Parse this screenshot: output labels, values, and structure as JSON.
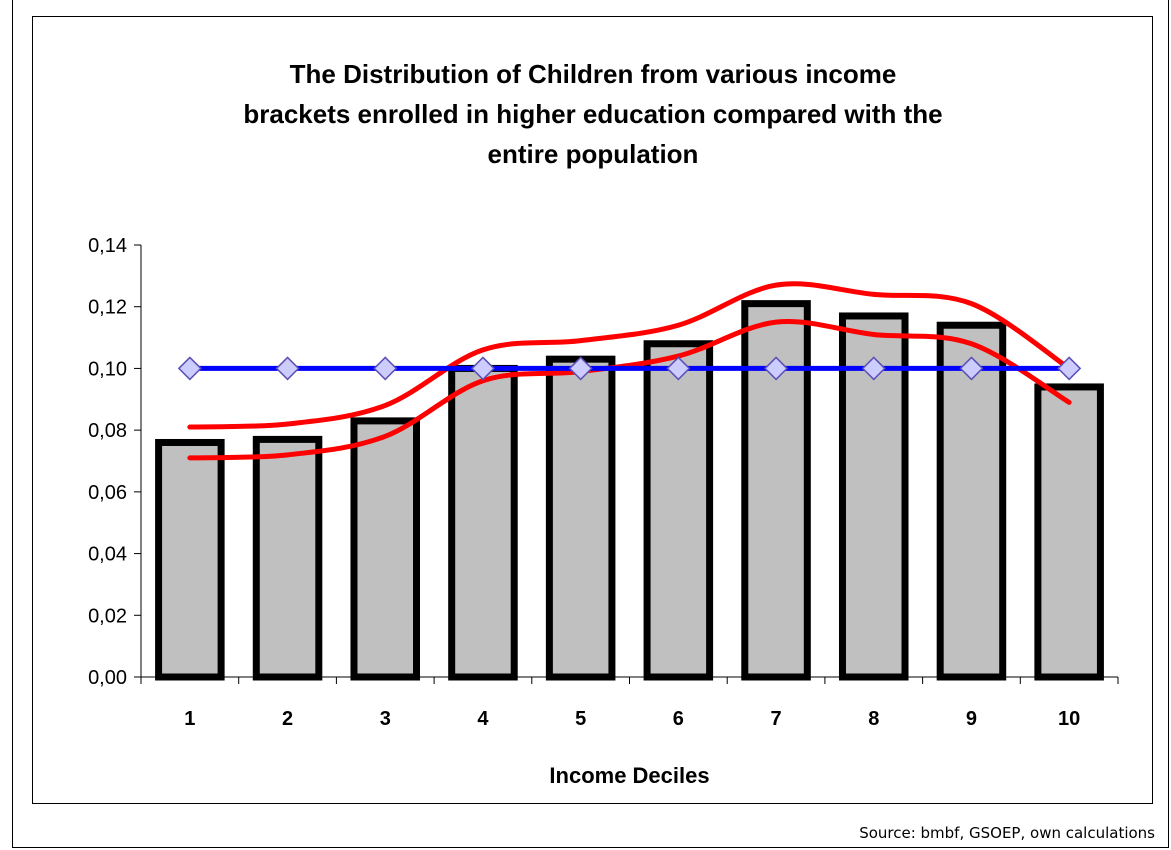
{
  "chart_data": {
    "type": "bar",
    "title": "The Distribution of Children from various income brackets enrolled in higher education compared with the entire population",
    "title_lines": [
      "The Distribution of Children from various income",
      "brackets enrolled in higher education compared with the",
      "entire population"
    ],
    "xlabel": "Income Deciles",
    "ylabel": "",
    "categories": [
      "1",
      "2",
      "3",
      "4",
      "5",
      "6",
      "7",
      "8",
      "9",
      "10"
    ],
    "ylim": [
      0,
      0.14
    ],
    "yticks": [
      "0,00",
      "0,02",
      "0,04",
      "0,06",
      "0,08",
      "0,10",
      "0,12",
      "0,14"
    ],
    "grid": false,
    "legend": "none",
    "series": [
      {
        "type": "bar",
        "values": [
          0.076,
          0.077,
          0.083,
          0.1,
          0.103,
          0.108,
          0.121,
          0.117,
          0.114,
          0.094
        ],
        "color": "#c0c0c0"
      },
      {
        "type": "line",
        "values": [
          0.1,
          0.1,
          0.1,
          0.1,
          0.1,
          0.1,
          0.1,
          0.1,
          0.1,
          0.1
        ],
        "color": "#0000ff",
        "marker": "diamond",
        "marker_color": "#ccccff"
      },
      {
        "type": "line",
        "values": [
          0.081,
          0.082,
          0.088,
          0.106,
          0.109,
          0.114,
          0.127,
          0.124,
          0.121,
          0.1
        ],
        "color": "#ff0000"
      },
      {
        "type": "line",
        "values": [
          0.071,
          0.072,
          0.078,
          0.096,
          0.099,
          0.104,
          0.115,
          0.111,
          0.108,
          0.089
        ],
        "color": "#ff0000"
      }
    ]
  },
  "source_note": "Source: bmbf, GSOEP, own calculations"
}
